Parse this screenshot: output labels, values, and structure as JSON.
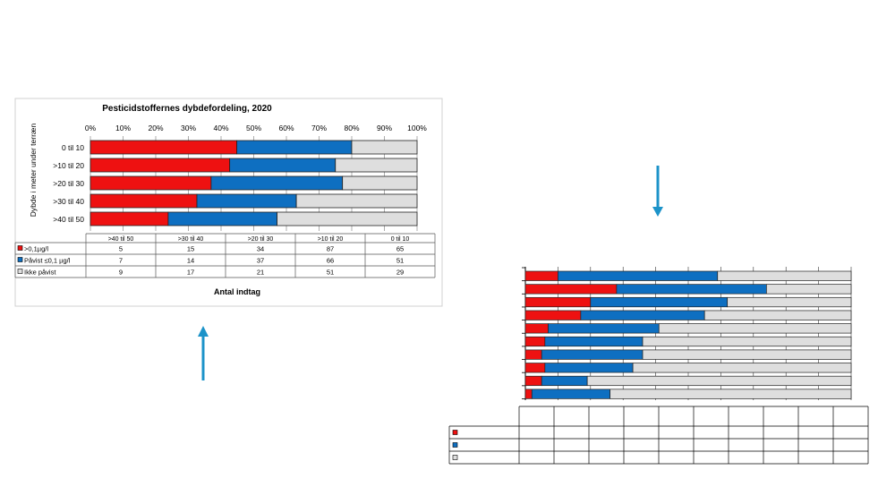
{
  "colors": {
    "red": "#ee1111",
    "blue": "#0e6fc1",
    "grey": "#dedede",
    "arrow": "#1c93c9"
  },
  "chart_data": [
    {
      "type": "bar",
      "stacked": "percent",
      "orientation": "horizontal",
      "title": "Pesticidstoffernes dybdefordeling, 2020",
      "ylabel": "Dybde i meter under terræn",
      "xlabel": "Antal indtag",
      "x_ticks": [
        "0%",
        "10%",
        "20%",
        "30%",
        "40%",
        "50%",
        "60%",
        "70%",
        "80%",
        "90%",
        "100%"
      ],
      "grid": true,
      "categories": [
        "0 til 10",
        ">10 til 20",
        ">20 til 30",
        ">30 til 40",
        ">40 til 50"
      ],
      "table_columns": [
        ">40 til 50",
        ">30 til 40",
        ">20 til 30",
        ">10 til 20",
        "0 til 10"
      ],
      "series": [
        {
          "name": ">0,1µg/l",
          "color": "#ee1111",
          "table": [
            "5",
            "15",
            "34",
            "87",
            "65"
          ]
        },
        {
          "name": "Påvist ≤0,1 µg/l",
          "color": "#0e6fc1",
          "table": [
            "7",
            "14",
            "37",
            "66",
            "51"
          ]
        },
        {
          "name": "Ikke påvist",
          "color": "#dedede",
          "table": [
            "9",
            "17",
            "21",
            "51",
            "29"
          ]
        }
      ]
    },
    {
      "type": "bar",
      "stacked": "percent",
      "orientation": "horizontal",
      "grid": true,
      "rows": [
        [
          10,
          49,
          41
        ],
        [
          28,
          46,
          26
        ],
        [
          20,
          42,
          38
        ],
        [
          17,
          38,
          45
        ],
        [
          7,
          34,
          59
        ],
        [
          6,
          30,
          64
        ],
        [
          5,
          31,
          64
        ],
        [
          6,
          27,
          67
        ],
        [
          5,
          14,
          81
        ],
        [
          2,
          24,
          74
        ]
      ]
    }
  ]
}
